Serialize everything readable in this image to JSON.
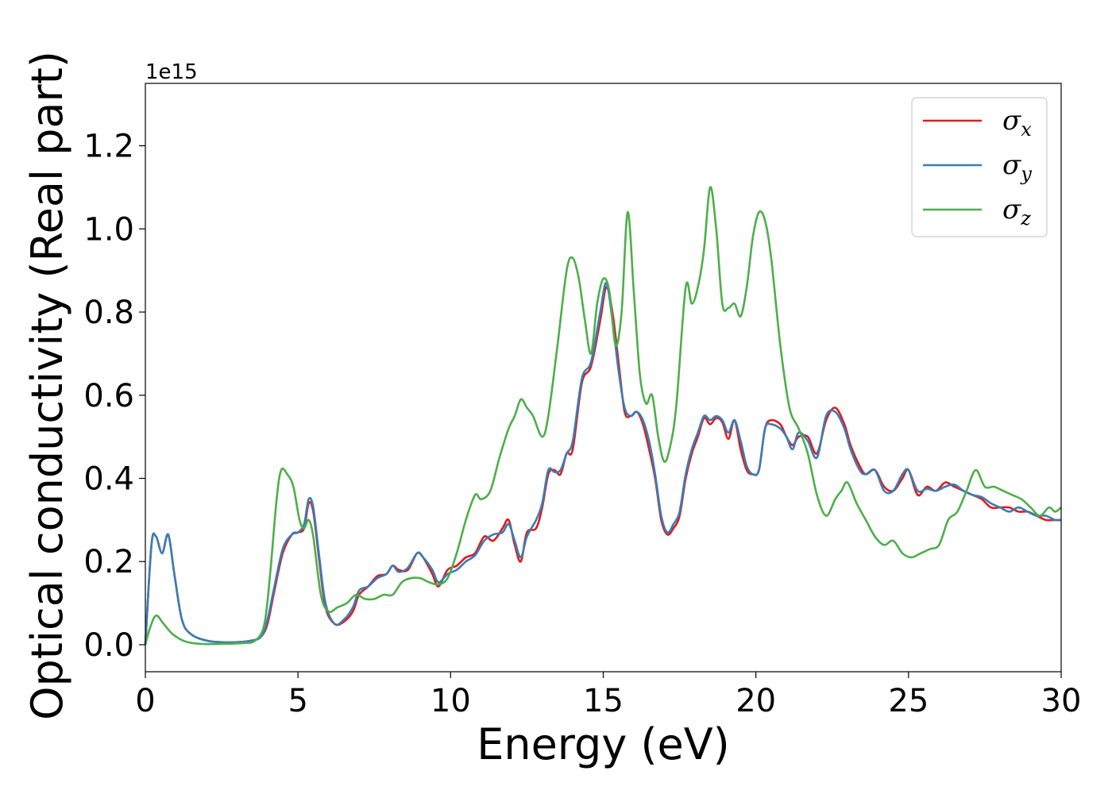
{
  "chart_data": {
    "type": "line",
    "title": "",
    "xlabel": "Energy (eV)",
    "ylabel": "Optical conductivity (Real part)",
    "y_offset_label": "1e15",
    "xlim": [
      0,
      30
    ],
    "ylim": [
      -0.065,
      1.35
    ],
    "xticks": [
      0,
      5,
      10,
      15,
      20,
      25,
      30
    ],
    "xtick_labels": [
      "0",
      "5",
      "10",
      "15",
      "20",
      "25",
      "30"
    ],
    "yticks": [
      0.0,
      0.2,
      0.4,
      0.6,
      0.8,
      1.0,
      1.2
    ],
    "ytick_labels": [
      "0.0",
      "0.2",
      "0.4",
      "0.6",
      "0.8",
      "1.0",
      "1.2"
    ],
    "grid": false,
    "legend_position": "top-right",
    "series": [
      {
        "name": "σx",
        "legend_symbol": "σ",
        "legend_sub": "x",
        "color": "#e41a1c",
        "x": [
          0,
          0.2,
          0.35,
          0.55,
          0.75,
          0.95,
          1.2,
          1.5,
          2,
          2.5,
          3,
          3.5,
          3.8,
          4.0,
          4.2,
          4.5,
          4.8,
          5.0,
          5.2,
          5.35,
          5.5,
          5.7,
          5.9,
          6.2,
          6.5,
          6.8,
          7.0,
          7.3,
          7.6,
          7.9,
          8.1,
          8.3,
          8.6,
          8.9,
          9.1,
          9.4,
          9.6,
          9.9,
          10.2,
          10.5,
          10.8,
          11.1,
          11.4,
          11.7,
          11.9,
          12.1,
          12.3,
          12.5,
          12.8,
          13.0,
          13.2,
          13.4,
          13.6,
          13.8,
          14.0,
          14.3,
          14.6,
          14.9,
          15.1,
          15.3,
          15.5,
          15.7,
          15.9,
          16.1,
          16.3,
          16.5,
          16.7,
          16.9,
          17.1,
          17.3,
          17.5,
          17.7,
          17.9,
          18.1,
          18.3,
          18.5,
          18.7,
          18.9,
          19.1,
          19.3,
          19.5,
          19.7,
          19.9,
          20.1,
          20.3,
          20.5,
          20.8,
          21.0,
          21.2,
          21.4,
          21.7,
          22.0,
          22.3,
          22.6,
          22.9,
          23.1,
          23.4,
          23.6,
          23.9,
          24.2,
          24.5,
          24.8,
          25.0,
          25.3,
          25.6,
          25.9,
          26.2,
          26.5,
          26.8,
          27.1,
          27.4,
          27.7,
          28.0,
          28.3,
          28.6,
          28.9,
          29.2,
          29.5,
          29.8,
          30.0
        ],
        "values": [
          0,
          0.24,
          0.26,
          0.22,
          0.265,
          0.17,
          0.06,
          0.025,
          0.01,
          0.006,
          0.006,
          0.01,
          0.02,
          0.05,
          0.12,
          0.22,
          0.265,
          0.27,
          0.28,
          0.34,
          0.32,
          0.2,
          0.09,
          0.05,
          0.055,
          0.08,
          0.12,
          0.14,
          0.165,
          0.17,
          0.19,
          0.18,
          0.18,
          0.22,
          0.21,
          0.17,
          0.14,
          0.18,
          0.19,
          0.21,
          0.22,
          0.26,
          0.25,
          0.28,
          0.3,
          0.24,
          0.2,
          0.27,
          0.28,
          0.33,
          0.41,
          0.42,
          0.41,
          0.46,
          0.47,
          0.63,
          0.67,
          0.78,
          0.86,
          0.8,
          0.68,
          0.56,
          0.55,
          0.56,
          0.53,
          0.47,
          0.4,
          0.3,
          0.265,
          0.28,
          0.31,
          0.4,
          0.46,
          0.5,
          0.545,
          0.53,
          0.545,
          0.535,
          0.495,
          0.54,
          0.47,
          0.42,
          0.41,
          0.42,
          0.52,
          0.54,
          0.53,
          0.5,
          0.48,
          0.5,
          0.5,
          0.46,
          0.54,
          0.57,
          0.53,
          0.48,
          0.43,
          0.41,
          0.42,
          0.38,
          0.37,
          0.4,
          0.42,
          0.36,
          0.38,
          0.37,
          0.39,
          0.38,
          0.37,
          0.36,
          0.35,
          0.33,
          0.33,
          0.33,
          0.32,
          0.32,
          0.31,
          0.3,
          0.3,
          0.3
        ]
      },
      {
        "name": "σy",
        "legend_symbol": "σ",
        "legend_sub": "y",
        "color": "#377eb8",
        "x": [
          0,
          0.2,
          0.35,
          0.55,
          0.75,
          0.95,
          1.2,
          1.5,
          2,
          2.5,
          3,
          3.5,
          3.8,
          4.0,
          4.2,
          4.5,
          4.8,
          5.0,
          5.2,
          5.35,
          5.5,
          5.7,
          5.9,
          6.2,
          6.5,
          6.8,
          7.0,
          7.3,
          7.6,
          7.9,
          8.1,
          8.3,
          8.6,
          8.9,
          9.1,
          9.4,
          9.6,
          9.9,
          10.2,
          10.5,
          10.8,
          11.1,
          11.4,
          11.7,
          11.9,
          12.1,
          12.3,
          12.5,
          12.8,
          13.0,
          13.2,
          13.4,
          13.6,
          13.8,
          14.0,
          14.3,
          14.6,
          14.9,
          15.1,
          15.3,
          15.5,
          15.7,
          15.9,
          16.1,
          16.3,
          16.5,
          16.7,
          16.9,
          17.1,
          17.3,
          17.5,
          17.7,
          17.9,
          18.1,
          18.3,
          18.5,
          18.7,
          18.9,
          19.1,
          19.3,
          19.5,
          19.7,
          19.9,
          20.1,
          20.3,
          20.5,
          20.8,
          21.0,
          21.2,
          21.4,
          21.7,
          22.0,
          22.3,
          22.6,
          22.9,
          23.1,
          23.4,
          23.6,
          23.9,
          24.2,
          24.5,
          24.8,
          25.0,
          25.3,
          25.6,
          25.9,
          26.2,
          26.5,
          26.8,
          27.1,
          27.4,
          27.7,
          28.0,
          28.3,
          28.6,
          28.9,
          29.2,
          29.5,
          29.8,
          30.0
        ],
        "values": [
          0,
          0.24,
          0.26,
          0.22,
          0.265,
          0.17,
          0.06,
          0.025,
          0.01,
          0.006,
          0.006,
          0.01,
          0.02,
          0.06,
          0.13,
          0.23,
          0.265,
          0.27,
          0.29,
          0.35,
          0.33,
          0.21,
          0.1,
          0.05,
          0.06,
          0.09,
          0.13,
          0.14,
          0.16,
          0.17,
          0.19,
          0.175,
          0.185,
          0.22,
          0.21,
          0.18,
          0.15,
          0.17,
          0.18,
          0.2,
          0.215,
          0.25,
          0.265,
          0.27,
          0.29,
          0.25,
          0.21,
          0.26,
          0.3,
          0.34,
          0.42,
          0.415,
          0.42,
          0.46,
          0.49,
          0.64,
          0.68,
          0.8,
          0.87,
          0.78,
          0.66,
          0.57,
          0.55,
          0.56,
          0.54,
          0.49,
          0.41,
          0.31,
          0.27,
          0.29,
          0.32,
          0.41,
          0.47,
          0.51,
          0.55,
          0.54,
          0.55,
          0.54,
          0.51,
          0.54,
          0.49,
          0.43,
          0.41,
          0.42,
          0.52,
          0.53,
          0.52,
          0.5,
          0.47,
          0.51,
          0.49,
          0.45,
          0.55,
          0.56,
          0.52,
          0.47,
          0.42,
          0.41,
          0.42,
          0.37,
          0.37,
          0.41,
          0.42,
          0.37,
          0.375,
          0.37,
          0.38,
          0.385,
          0.37,
          0.36,
          0.355,
          0.34,
          0.33,
          0.32,
          0.33,
          0.32,
          0.31,
          0.31,
          0.3,
          0.3
        ]
      },
      {
        "name": "σz",
        "legend_symbol": "σ",
        "legend_sub": "z",
        "color": "#4daf4a",
        "x": [
          0,
          0.15,
          0.35,
          0.6,
          0.9,
          1.3,
          1.8,
          2.5,
          3.2,
          3.6,
          3.9,
          4.1,
          4.3,
          4.45,
          4.65,
          4.85,
          5.05,
          5.2,
          5.35,
          5.5,
          5.75,
          6.0,
          6.3,
          6.6,
          6.9,
          7.2,
          7.5,
          7.8,
          8.1,
          8.4,
          8.7,
          9.0,
          9.3,
          9.6,
          9.9,
          10.2,
          10.5,
          10.8,
          11.0,
          11.3,
          11.6,
          11.9,
          12.1,
          12.3,
          12.5,
          12.7,
          13.0,
          13.2,
          13.5,
          13.8,
          14.0,
          14.2,
          14.4,
          14.6,
          14.8,
          15.0,
          15.2,
          15.4,
          15.6,
          15.8,
          16.0,
          16.2,
          16.4,
          16.6,
          16.8,
          17.0,
          17.2,
          17.4,
          17.7,
          17.9,
          18.1,
          18.3,
          18.5,
          18.7,
          18.9,
          19.1,
          19.3,
          19.5,
          19.7,
          19.9,
          20.1,
          20.3,
          20.5,
          20.8,
          21.1,
          21.4,
          21.7,
          22.0,
          22.3,
          22.6,
          22.8,
          23.0,
          23.3,
          23.6,
          23.9,
          24.2,
          24.5,
          24.8,
          25.1,
          25.4,
          25.7,
          26.0,
          26.3,
          26.6,
          26.9,
          27.2,
          27.5,
          27.8,
          28.1,
          28.4,
          28.7,
          29.0,
          29.3,
          29.6,
          29.8,
          30.0
        ],
        "values": [
          0,
          0.04,
          0.07,
          0.05,
          0.025,
          0.008,
          0.002,
          0.002,
          0.004,
          0.01,
          0.05,
          0.18,
          0.35,
          0.42,
          0.41,
          0.38,
          0.3,
          0.28,
          0.3,
          0.26,
          0.12,
          0.08,
          0.09,
          0.1,
          0.12,
          0.11,
          0.11,
          0.12,
          0.12,
          0.15,
          0.16,
          0.16,
          0.15,
          0.145,
          0.16,
          0.22,
          0.3,
          0.36,
          0.35,
          0.37,
          0.45,
          0.52,
          0.55,
          0.59,
          0.57,
          0.55,
          0.5,
          0.55,
          0.72,
          0.9,
          0.93,
          0.88,
          0.78,
          0.7,
          0.82,
          0.88,
          0.85,
          0.72,
          0.8,
          1.04,
          0.85,
          0.65,
          0.58,
          0.6,
          0.5,
          0.44,
          0.48,
          0.58,
          0.86,
          0.82,
          0.86,
          0.95,
          1.1,
          1.0,
          0.82,
          0.81,
          0.82,
          0.79,
          0.86,
          0.98,
          1.04,
          1.02,
          0.93,
          0.72,
          0.57,
          0.52,
          0.46,
          0.36,
          0.31,
          0.35,
          0.37,
          0.39,
          0.34,
          0.3,
          0.26,
          0.24,
          0.25,
          0.22,
          0.21,
          0.22,
          0.23,
          0.24,
          0.3,
          0.32,
          0.37,
          0.42,
          0.38,
          0.38,
          0.37,
          0.36,
          0.35,
          0.33,
          0.31,
          0.33,
          0.32,
          0.33
        ]
      }
    ]
  }
}
